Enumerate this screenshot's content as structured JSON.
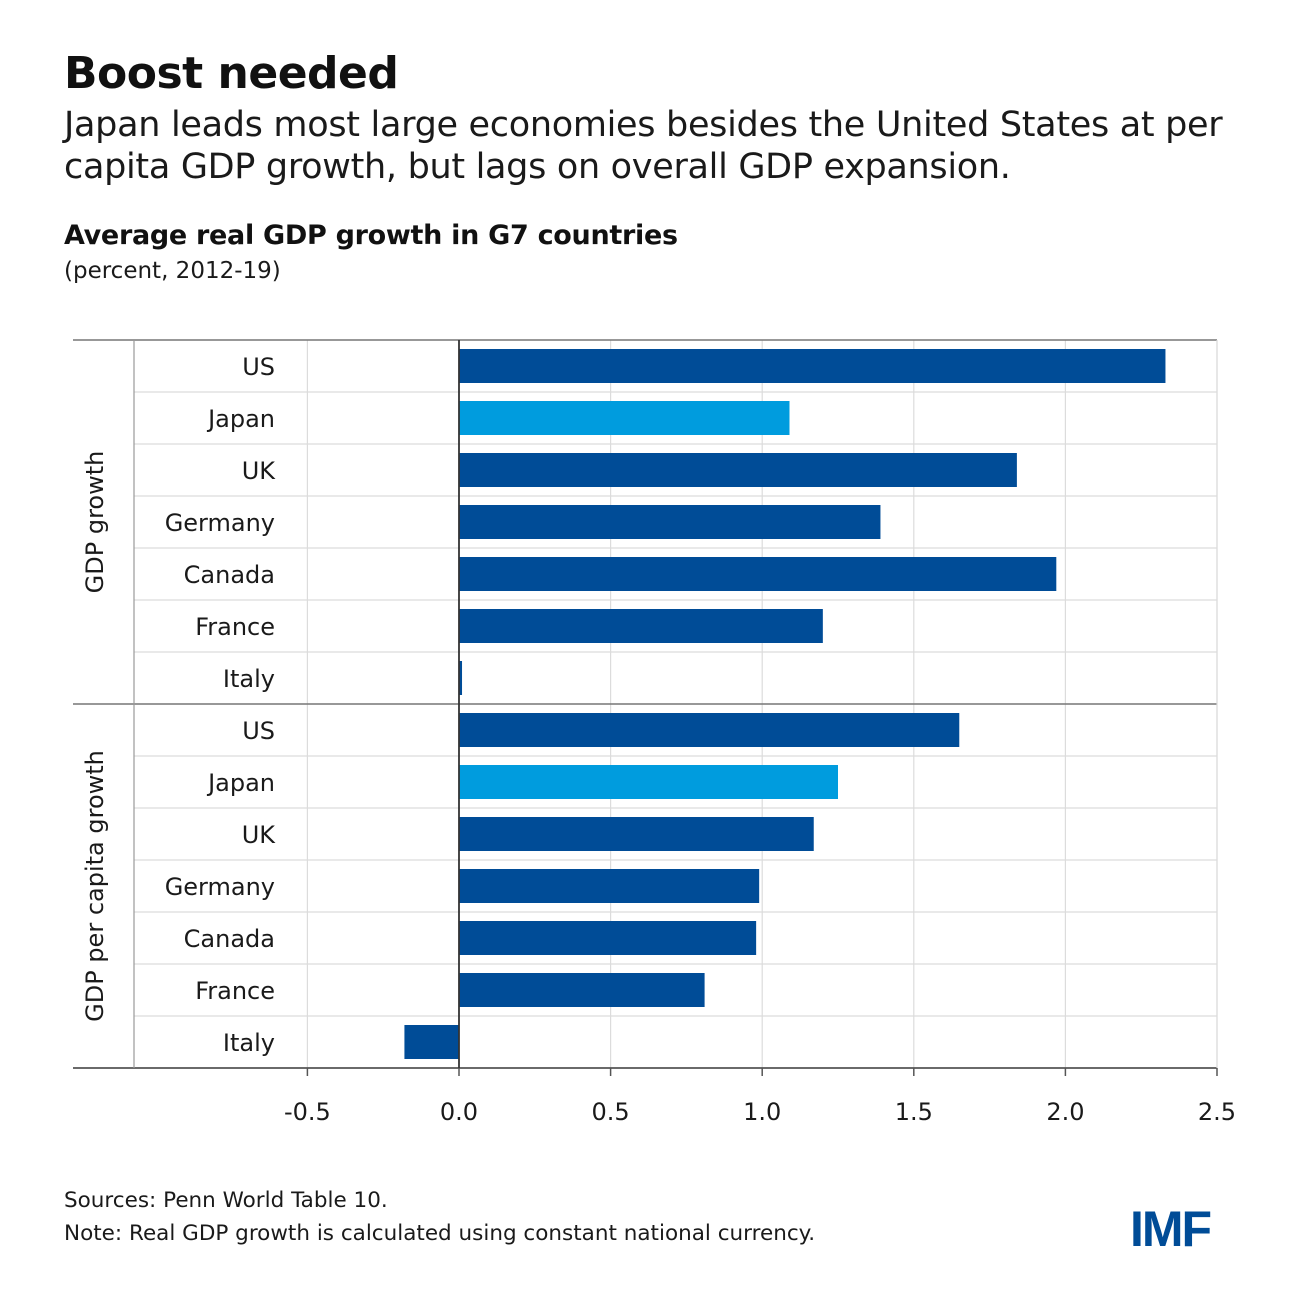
{
  "header": {
    "headline": "Boost needed",
    "subhead": "Japan leads most large economies besides the United States at per capita GDP growth, but lags on overall GDP expansion."
  },
  "chart_data": {
    "type": "bar",
    "orientation": "horizontal",
    "title": "Average real GDP growth in G7 countries",
    "subtitle": "(percent, 2012-19)",
    "xlabel": "",
    "ylabel": "",
    "xlim": [
      -0.5,
      2.5
    ],
    "xticks": [
      -0.5,
      0.0,
      0.5,
      1.0,
      1.5,
      2.0,
      2.5
    ],
    "xtick_labels": [
      "-0.5",
      "0.0",
      "0.5",
      "1.0",
      "1.5",
      "2.0",
      "2.5"
    ],
    "grid": true,
    "colors": {
      "default": "#004c97",
      "highlight": "#009cde",
      "grid": "#dcdcdc",
      "axis": "#333333"
    },
    "highlight_category": "Japan",
    "groups": [
      {
        "name": "GDP growth",
        "categories": [
          "US",
          "Japan",
          "UK",
          "Germany",
          "Canada",
          "France",
          "Italy"
        ],
        "values": [
          2.33,
          1.09,
          1.84,
          1.39,
          1.97,
          1.2,
          0.01
        ]
      },
      {
        "name": "GDP per capita growth",
        "categories": [
          "US",
          "Japan",
          "UK",
          "Germany",
          "Canada",
          "France",
          "Italy"
        ],
        "values": [
          1.65,
          1.25,
          1.17,
          0.99,
          0.98,
          0.81,
          -0.18
        ]
      }
    ]
  },
  "footer": {
    "sources": "Sources: Penn World Table 10.",
    "note": "Note: Real GDP growth is calculated using constant national currency.",
    "logo": "IMF"
  }
}
